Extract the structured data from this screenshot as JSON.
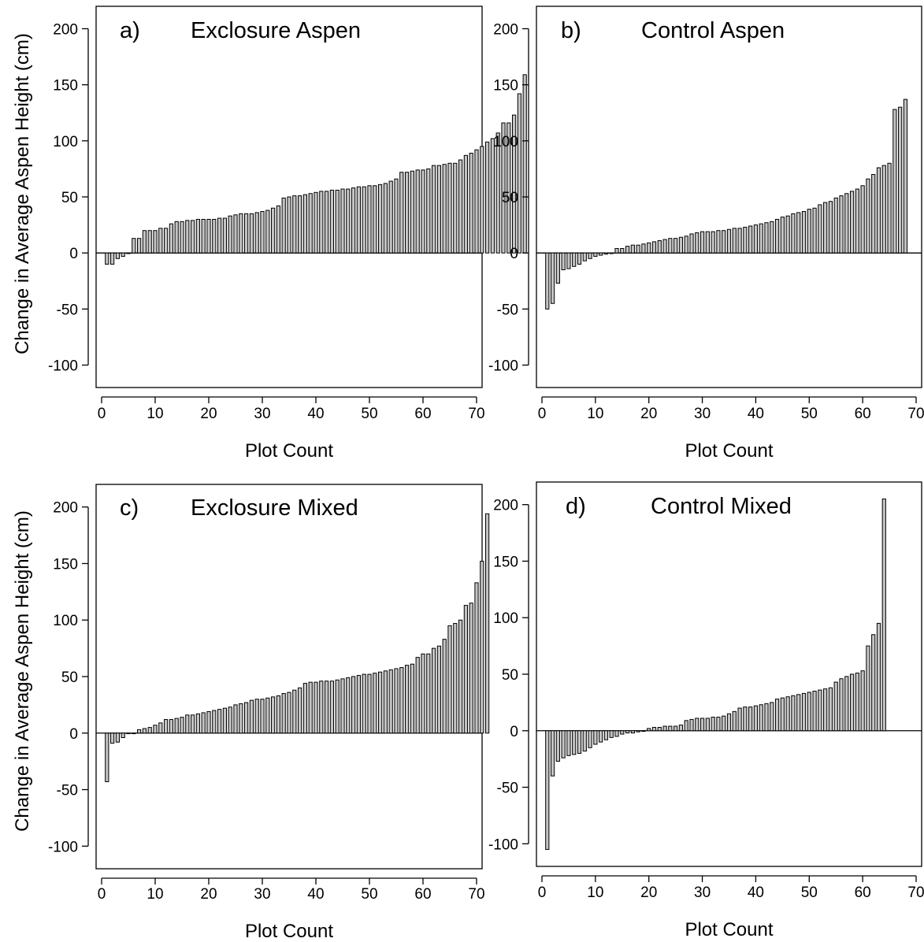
{
  "colors": {
    "bar_fill": "#c4c4c4",
    "bar_stroke": "#000000",
    "background": "#ffffff"
  },
  "chart_data": [
    {
      "type": "bar",
      "panel_label": "a)",
      "title": "Exclosure Aspen",
      "xlabel": "Plot Count",
      "ylabel": "Change in Average Aspen Height (cm)",
      "xlim": [
        0,
        70
      ],
      "ylim": [
        -120,
        220
      ],
      "xticks": [
        0,
        10,
        20,
        30,
        40,
        50,
        60,
        70
      ],
      "yticks": [
        200,
        150,
        100,
        50,
        0,
        -50,
        -100
      ],
      "grid": false,
      "values": [
        -10,
        -10,
        -5,
        -3,
        0,
        13,
        13,
        20,
        20,
        20,
        22,
        22,
        26,
        28,
        28,
        29,
        29,
        30,
        30,
        30,
        30,
        31,
        31,
        33,
        34,
        35,
        35,
        35,
        36,
        37,
        38,
        40,
        42,
        49,
        50,
        51,
        51,
        52,
        53,
        54,
        55,
        55,
        56,
        56,
        57,
        57,
        58,
        59,
        59,
        60,
        60,
        61,
        62,
        64,
        66,
        72,
        72,
        73,
        74,
        74,
        75,
        78,
        78,
        79,
        80,
        80,
        83,
        87,
        89,
        92,
        95,
        99,
        102,
        107,
        116,
        116,
        123,
        142,
        159
      ]
    },
    {
      "type": "bar",
      "panel_label": "b)",
      "title": "Control Aspen",
      "xlabel": "Plot Count",
      "ylabel": "",
      "xlim": [
        0,
        70
      ],
      "ylim": [
        -120,
        220
      ],
      "xticks": [
        0,
        10,
        20,
        30,
        40,
        50,
        60,
        70
      ],
      "yticks": [
        200,
        150,
        100,
        50,
        0,
        -50,
        -100
      ],
      "grid": false,
      "values": [
        -50,
        -45,
        -27,
        -15,
        -14,
        -12,
        -10,
        -7,
        -5,
        -3,
        -2,
        -1,
        0,
        4,
        4,
        6,
        7,
        7,
        8,
        9,
        10,
        11,
        12,
        13,
        13,
        14,
        15,
        17,
        18,
        19,
        19,
        19,
        20,
        20,
        21,
        22,
        22,
        23,
        24,
        25,
        26,
        27,
        28,
        30,
        32,
        33,
        35,
        36,
        37,
        39,
        40,
        43,
        45,
        46,
        49,
        51,
        53,
        55,
        57,
        60,
        66,
        70,
        76,
        78,
        80,
        128,
        130,
        137
      ]
    },
    {
      "type": "bar",
      "panel_label": "c)",
      "title": "Exclosure Mixed",
      "xlabel": "Plot Count",
      "ylabel": "Change in Average Aspen Height (cm)",
      "xlim": [
        0,
        70
      ],
      "ylim": [
        -120,
        220
      ],
      "xticks": [
        0,
        10,
        20,
        30,
        40,
        50,
        60,
        70
      ],
      "yticks": [
        200,
        150,
        100,
        50,
        0,
        -50,
        -100
      ],
      "grid": false,
      "values": [
        -43,
        -9,
        -8,
        -4,
        0,
        0,
        3,
        4,
        5,
        7,
        9,
        12,
        12,
        13,
        14,
        16,
        16,
        17,
        18,
        19,
        20,
        21,
        22,
        23,
        25,
        26,
        27,
        29,
        30,
        30,
        31,
        32,
        33,
        35,
        36,
        38,
        40,
        44,
        45,
        45,
        46,
        46,
        46,
        47,
        48,
        49,
        50,
        51,
        52,
        52,
        53,
        54,
        55,
        56,
        57,
        58,
        60,
        61,
        67,
        70,
        70,
        75,
        77,
        83,
        95,
        97,
        100,
        113,
        115,
        133,
        152,
        194
      ]
    },
    {
      "type": "bar",
      "panel_label": "d)",
      "title": "Control Mixed",
      "xlabel": "Plot Count",
      "ylabel": "",
      "xlim": [
        0,
        70
      ],
      "ylim": [
        -120,
        220
      ],
      "xticks": [
        0,
        10,
        20,
        30,
        40,
        50,
        60,
        70
      ],
      "yticks": [
        200,
        150,
        100,
        50,
        0,
        -50,
        -100
      ],
      "grid": false,
      "values": [
        -105,
        -40,
        -27,
        -24,
        -22,
        -21,
        -20,
        -18,
        -15,
        -12,
        -10,
        -8,
        -6,
        -5,
        -3,
        -2,
        -2,
        -1,
        0,
        2,
        3,
        3,
        4,
        4,
        4,
        5,
        9,
        10,
        11,
        11,
        11,
        12,
        12,
        13,
        15,
        17,
        20,
        21,
        21,
        22,
        23,
        24,
        25,
        28,
        29,
        30,
        31,
        32,
        33,
        34,
        35,
        36,
        37,
        38,
        43,
        46,
        48,
        50,
        51,
        53,
        75,
        85,
        95,
        205
      ]
    }
  ]
}
